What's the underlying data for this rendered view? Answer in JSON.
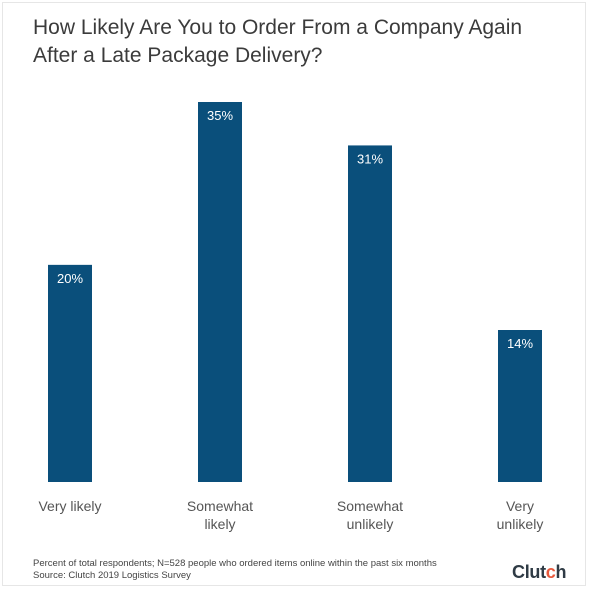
{
  "chart_data": {
    "type": "bar",
    "title": "How Likely Are You to Order From a Company Again After a Late Package Delivery?",
    "categories": [
      [
        "Very likely"
      ],
      [
        "Somewhat",
        "likely"
      ],
      [
        "Somewhat",
        "unlikely"
      ],
      [
        "Very",
        "unlikely"
      ]
    ],
    "values": [
      20,
      35,
      31,
      14
    ],
    "data_labels": [
      "20%",
      "35%",
      "31%",
      "14%"
    ],
    "xlabel": "",
    "ylabel": "",
    "ylim": [
      0,
      35
    ],
    "grid": false,
    "legend": "none",
    "bar_color": "#0a4f7b"
  },
  "footnote": {
    "line1": "Percent of total respondents; N=528 people who ordered items online within the past six months",
    "line2": "Source: Clutch 2019 Logistics Survey"
  },
  "logo": {
    "text_main": "Clut",
    "text_accent_letter": "c",
    "text_end": "h",
    "accent_color": "#e8593c"
  }
}
